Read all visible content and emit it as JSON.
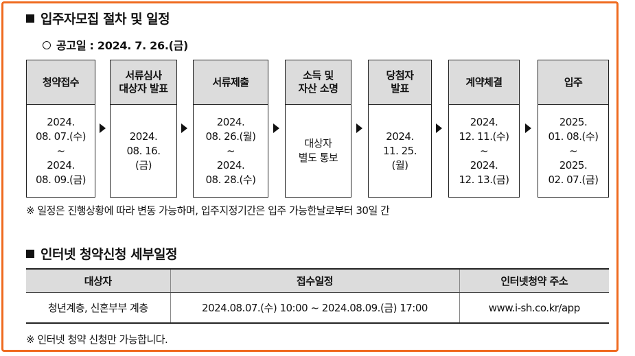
{
  "section1": {
    "title": "입주자모집 절차 및 일정",
    "announcement": "공고일 : 2024. 7. 26.(금)",
    "steps": [
      {
        "name": "청약접수",
        "date": "2024.\n08. 07.(수)\n~\n2024.\n08. 09.(금)"
      },
      {
        "name": "서류심사\n대상자 발표",
        "date": "2024.\n08. 16.\n(금)"
      },
      {
        "name": "서류제출",
        "date": "2024.\n08. 26.(월)\n~\n2024.\n08. 28.(수)"
      },
      {
        "name": "소득 및\n자산 소명",
        "date": "대상자\n별도 통보"
      },
      {
        "name": "당첨자\n발표",
        "date": "2024.\n11. 25.\n(월)"
      },
      {
        "name": "계약체결",
        "date": "2024.\n12. 11.(수)\n~\n2024.\n12. 13.(금)"
      },
      {
        "name": "입주",
        "date": "2025.\n01. 08.(수)\n~\n2025.\n02. 07.(금)"
      }
    ],
    "note": "※ 일정은 진행상황에 따라 변동 가능하며, 입주지정기간은 입주 가능한날로부터 30일 간"
  },
  "section2": {
    "title": "인터넷 청약신청 세부일정",
    "headers": [
      "대상자",
      "접수일정",
      "인터넷청약 주소"
    ],
    "row": [
      "청년계층, 신혼부부 계층",
      "2024.08.07.(수) 10:00 ~ 2024.08.09.(금) 17:00",
      "www.i-sh.co.kr/app"
    ],
    "note": "※ 인터넷 청약 신청만 가능합니다."
  },
  "colors": {
    "border_accent": "#ef6a1f",
    "header_fill": "#dcdcdc"
  }
}
